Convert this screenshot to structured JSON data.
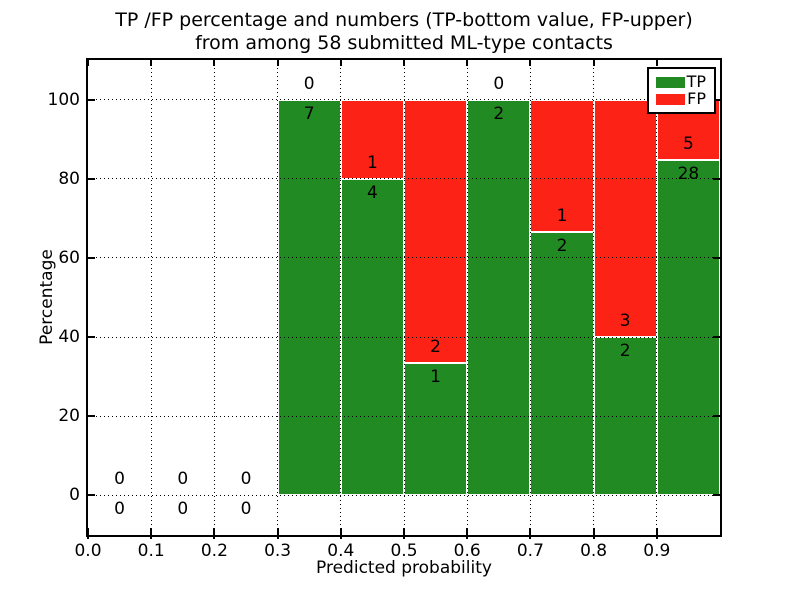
{
  "chart_data": {
    "type": "bar",
    "subtype": "stacked-percentage-histogram",
    "title_line1": "TP /FP percentage and numbers (TP-bottom value, FP-upper)",
    "title_line2": "from among 58 submitted ML-type contacts",
    "xlabel": "Predicted probability",
    "ylabel": "Percentage",
    "xlim": [
      0.0,
      1.0
    ],
    "ylim": [
      -10,
      110
    ],
    "bin_width": 0.1,
    "x_tick_labels": [
      "0.0",
      "0.1",
      "0.2",
      "0.3",
      "0.4",
      "0.5",
      "0.6",
      "0.7",
      "0.8",
      "0.9"
    ],
    "y_tick_values": [
      0,
      20,
      40,
      60,
      80,
      100
    ],
    "y_tick_labels": [
      "0",
      "20",
      "40",
      "60",
      "80",
      "100"
    ],
    "grid": "dotted",
    "bins": [
      {
        "range_start": 0.0,
        "tp_count": 0,
        "fp_count": 0
      },
      {
        "range_start": 0.1,
        "tp_count": 0,
        "fp_count": 0
      },
      {
        "range_start": 0.2,
        "tp_count": 0,
        "fp_count": 0
      },
      {
        "range_start": 0.3,
        "tp_count": 7,
        "fp_count": 0
      },
      {
        "range_start": 0.4,
        "tp_count": 4,
        "fp_count": 1
      },
      {
        "range_start": 0.5,
        "tp_count": 1,
        "fp_count": 2
      },
      {
        "range_start": 0.6,
        "tp_count": 2,
        "fp_count": 0
      },
      {
        "range_start": 0.7,
        "tp_count": 2,
        "fp_count": 1
      },
      {
        "range_start": 0.8,
        "tp_count": 2,
        "fp_count": 3
      },
      {
        "range_start": 0.9,
        "tp_count": 28,
        "fp_count": 5
      }
    ],
    "legend": {
      "position": "upper right",
      "entries": [
        {
          "label": "TP",
          "color": "#228a22"
        },
        {
          "label": "FP",
          "color": "#fc2316"
        }
      ]
    },
    "colors": {
      "tp": "#228a22",
      "fp": "#fc2316",
      "grid": "#000000",
      "axis": "#000000",
      "background": "#ffffff"
    }
  }
}
